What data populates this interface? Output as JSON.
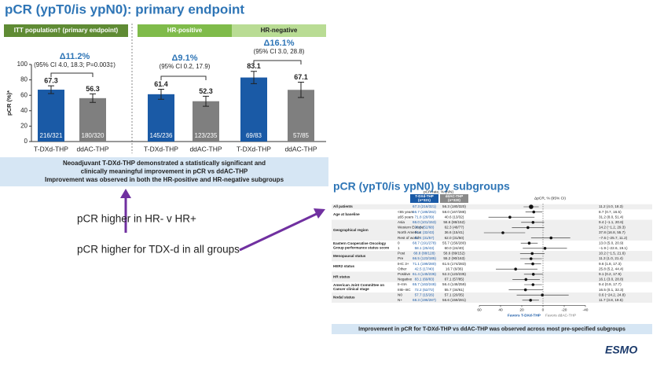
{
  "title": "pCR (ypT0/is ypN0): primary endpoint",
  "summary_box": [
    "Neoadjuvant T-DXd-THP demonstrated a statistically significant and",
    "clinically meaningful improvement in pCR vs ddAC-THP",
    "Improvement was observed in both the HR-positive and HR-negative subgroups"
  ],
  "annotations": [
    "pCR higher in HR- v HR+",
    "pCR higher for TDX-d in all groups"
  ],
  "subgroup_title": "pCR (ypT0/is ypN0) by subgroups",
  "footer": "Improvement in pCR for T-DXd-THP vs ddAC-THP was observed across most pre-specified subgroups",
  "logo": "ESMO",
  "chart_data": [
    {
      "type": "bar",
      "ylabel": "pCR (%)*",
      "ylim": [
        0,
        100
      ],
      "yticks": [
        0,
        20,
        40,
        60,
        80,
        100
      ],
      "colors": [
        "#1a5aa6",
        "#7f7f7f"
      ],
      "panels": [
        {
          "header": "ITT population† (primary endpoint)",
          "delta": "Δ11.2%",
          "ci": "(95% CI 4.0, 18.3; P=0.003‡)",
          "categories": [
            "T-DXd-THP",
            "ddAC-THP"
          ],
          "values": [
            67.3,
            56.3
          ],
          "errors": [
            5,
            5.5
          ],
          "n_labels": [
            "216/321",
            "180/320"
          ]
        },
        {
          "header": "HR-positive",
          "delta": "Δ9.1%",
          "ci": "(95% CI 0.2, 17.9)",
          "categories": [
            "T-DXd-THP",
            "ddAC-THP"
          ],
          "values": [
            61.4,
            52.3
          ],
          "errors": [
            6.5,
            6.5
          ],
          "n_labels": [
            "145/236",
            "123/235"
          ]
        },
        {
          "header": "HR-negative",
          "delta": "Δ16.1%",
          "ci": "(95% CI 3.0, 28.8)",
          "categories": [
            "T-DXd-THP",
            "ddAC-THP"
          ],
          "values": [
            83.1,
            67.1
          ],
          "errors": [
            8,
            10
          ],
          "n_labels": [
            "69/83",
            "57/85"
          ]
        }
      ]
    },
    {
      "type": "forest",
      "header": "pCR rate, % (n/N)",
      "columns": [
        [
          "T-DXd-THP",
          "(n=321)"
        ],
        [
          "ddAC-THP",
          "(n=320)"
        ]
      ],
      "delta_header": "ΔpCR, % (95% CI)",
      "xlim": [
        60,
        -40
      ],
      "xticks": [
        60,
        40,
        20,
        0,
        -20,
        -40
      ],
      "favors": [
        "Favors T-DXd-THP",
        "Favors ddAC-THP"
      ],
      "rows": [
        {
          "group": [
            "All patients"
          ],
          "tdxd": "67.3 (216/321)",
          "ddac": "56.3 (180/320)",
          "value": 11.2,
          "ci_low": 4.0,
          "ci_high": 18.3,
          "value_label": "11.2 (4.0, 18.3)"
        },
        {
          "group": [
            "Age at baseline"
          ],
          "subgroup": "<65 years",
          "tdxd": "66.7 (188/282)",
          "ddac": "58.0 (167/288)",
          "value": 8.7,
          "ci_low": 0.7,
          "ci_high": 16.5,
          "value_label": "8.7 (0.7, 16.5)"
        },
        {
          "subgroup": "≥65 years",
          "tdxd": "71.8 (28/39)",
          "ddac": "40.6 (13/32)",
          "value": 31.2,
          "ci_low": 8.0,
          "ci_high": 51.4,
          "value_label": "31.2 (8.0, 51.4)"
        },
        {
          "group": [
            "Geographical region"
          ],
          "subgroup": "Asia",
          "tdxd": "66.0 (101/153)",
          "ddac": "56.6 (86/152)",
          "value": 9.4,
          "ci_low": -1.1,
          "ci_high": 20.6,
          "value_label": "9.4 (−1.1, 20.6)"
        },
        {
          "subgroup": "Western Europe",
          "tdxd": "76.5 (52/68)",
          "ddac": "62.3 (48/77)",
          "value": 14.2,
          "ci_low": -1.2,
          "ci_high": 29.3,
          "value_label": "14.2 (−1.2, 29.3)"
        },
        {
          "subgroup": "North America",
          "tdxd": "74.4 (32/43)",
          "ddac": "36.6 (15/41)",
          "value": 37.8,
          "ci_low": 16.8,
          "ci_high": 55.7,
          "value_label": "37.8 (16.8, 55.7)"
        },
        {
          "subgroup": "Rest of world*",
          "tdxd": "54.4 (31/57)",
          "ddac": "62.0 (31/50)",
          "value": -7.6,
          "ci_low": -25.7,
          "ci_high": 11.2,
          "value_label": "−7.6 (−25.7, 11.2)"
        },
        {
          "group": [
            "Eastern Cooperative Oncology",
            "Group performance status score"
          ],
          "subgroup": "0",
          "tdxd": "68.7 (191/278)",
          "ddac": "55.7 (156/280)",
          "value": 13.0,
          "ci_low": 5.0,
          "ci_high": 20.9,
          "value_label": "13.0 (5.0, 20.9)"
        },
        {
          "subgroup": "1",
          "tdxd": "58.1 (25/43)",
          "ddac": "60.0 (24/40)",
          "value": -1.9,
          "ci_low": -22.6,
          "ci_high": 19.1,
          "value_label": "−1.9 (−22.6, 19.1)"
        },
        {
          "group": [
            "Menopausal status"
          ],
          "subgroup": "Post",
          "tdxd": "68.8 (88/128)",
          "ddac": "58.6 (89/152)",
          "value": 10.2,
          "ci_low": -1.5,
          "ci_high": 21.6,
          "value_label": "10.2 (−1.5, 21.6)"
        },
        {
          "subgroup": "Pre",
          "tdxd": "66.5 (123/185)",
          "ddac": "55.2 (90/163)",
          "value": 11.3,
          "ci_low": 1.0,
          "ci_high": 21.4,
          "value_label": "11.3 (1.0, 21.4)"
        },
        {
          "group": [
            "HER2 status"
          ],
          "subgroup": "IHC 3+",
          "tdxd": "71.1 (199/280)",
          "ddac": "61.5 (174/283)",
          "value": 9.6,
          "ci_low": 1.8,
          "ci_high": 17.3,
          "value_label": "9.6 (1.8, 17.3)"
        },
        {
          "subgroup": "Other",
          "tdxd": "42.5 (17/40)",
          "ddac": "16.7 (6/36)",
          "value": 25.8,
          "ci_low": 5.2,
          "ci_high": 44.4,
          "value_label": "25.8 (5.2, 44.4)"
        },
        {
          "group": [
            "HR status"
          ],
          "subgroup": "Positive",
          "tdxd": "61.4 (145/236)",
          "ddac": "52.3 (123/235)",
          "value": 9.1,
          "ci_low": 0.2,
          "ci_high": 17.9,
          "value_label": "9.1 (0.2, 17.9)"
        },
        {
          "subgroup": "Negative",
          "tdxd": "83.1 (69/83)",
          "ddac": "67.1 (57/85)",
          "value": 16.1,
          "ci_low": 3.0,
          "ci_high": 28.8,
          "value_label": "16.1 (3.0, 28.8)"
        },
        {
          "group": [
            "American Joint Committee on",
            "Cancer clinical stage"
          ],
          "subgroup": "II–IIIA",
          "tdxd": "65.7 (163/248)",
          "ddac": "56.4 (146/259)",
          "value": 9.4,
          "ci_low": 0.9,
          "ci_high": 17.7,
          "value_label": "9.4 (0.9, 17.7)"
        },
        {
          "subgroup": "IIIB–IIIC",
          "tdxd": "72.2 (52/72)",
          "ddac": "55.7 (34/61)",
          "value": 16.5,
          "ci_low": 0.1,
          "ci_high": 32.3,
          "value_label": "16.5 (0.1, 32.3)"
        },
        {
          "group": [
            "Nodal status"
          ],
          "subgroup": "N0",
          "tdxd": "57.7 (15/26)",
          "ddac": "57.1 (20/35)",
          "value": 0.6,
          "ci_low": -24.2,
          "ci_high": 24.8,
          "value_label": "0.6 (−24.2, 24.8)"
        },
        {
          "subgroup": "N+",
          "tdxd": "68.3 (196/287)",
          "ddac": "56.6 (159/281)",
          "value": 11.7,
          "ci_low": 3.8,
          "ci_high": 19.5,
          "value_label": "11.7 (3.8, 19.5)"
        }
      ]
    }
  ]
}
